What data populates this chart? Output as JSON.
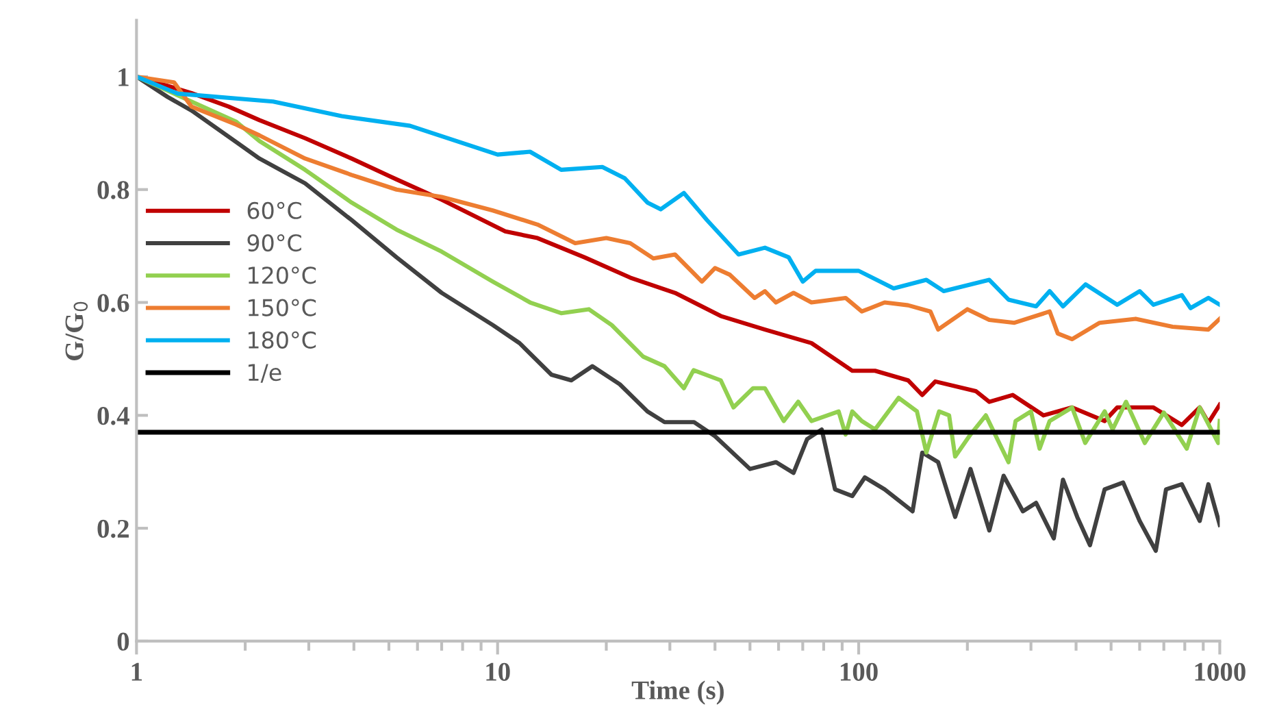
{
  "chart_data": {
    "type": "line",
    "xlabel": "Time (s)",
    "ylabel": "G/G$_{0}$",
    "log": "x",
    "xlim": [
      1,
      1000
    ],
    "ylim": [
      0,
      1.1
    ],
    "xticks": [
      1,
      10,
      100,
      1000
    ],
    "yticks": [
      0,
      0.2,
      0.4,
      0.6,
      0.8,
      1
    ],
    "grid": false,
    "legend": "left",
    "marker": "none",
    "line_style": "solid",
    "series": [
      {
        "name": "60°C",
        "color": "#c00000",
        "x": [
          1,
          1.42,
          1.8,
          2.19,
          2.93,
          3.94,
          5.25,
          7.0,
          10.5,
          12.9,
          17.4,
          23.3,
          31,
          41.5,
          55,
          74,
          96,
          111,
          137,
          150,
          163,
          211,
          230,
          267,
          325,
          390,
          480,
          520,
          655,
          785,
          880,
          930,
          1000
        ],
        "values": [
          1.0,
          0.971,
          0.947,
          0.923,
          0.891,
          0.855,
          0.818,
          0.782,
          0.726,
          0.714,
          0.68,
          0.644,
          0.617,
          0.576,
          0.552,
          0.528,
          0.479,
          0.479,
          0.462,
          0.436,
          0.46,
          0.443,
          0.424,
          0.436,
          0.4,
          0.414,
          0.39,
          0.414,
          0.414,
          0.383,
          0.414,
          0.387,
          0.419
        ]
      },
      {
        "name": "90°C",
        "color": "#404040",
        "x": [
          1,
          1.22,
          1.42,
          1.89,
          2.19,
          2.93,
          3.94,
          5.25,
          7.0,
          9.7,
          11.5,
          14.1,
          16,
          18.3,
          21.8,
          26,
          29,
          35,
          40,
          50,
          59,
          66,
          72,
          79,
          86,
          96,
          104,
          118,
          141,
          150,
          166,
          185,
          204,
          230,
          252,
          285,
          310,
          347,
          368,
          403,
          437,
          480,
          540,
          600,
          665,
          710,
          785,
          880,
          930,
          1000
        ],
        "values": [
          1.0,
          0.964,
          0.94,
          0.884,
          0.855,
          0.811,
          0.746,
          0.68,
          0.617,
          0.56,
          0.528,
          0.472,
          0.462,
          0.487,
          0.455,
          0.407,
          0.388,
          0.388,
          0.363,
          0.305,
          0.317,
          0.298,
          0.358,
          0.375,
          0.269,
          0.257,
          0.29,
          0.269,
          0.23,
          0.334,
          0.317,
          0.22,
          0.305,
          0.196,
          0.293,
          0.23,
          0.245,
          0.182,
          0.286,
          0.22,
          0.17,
          0.269,
          0.281,
          0.213,
          0.16,
          0.269,
          0.278,
          0.213,
          0.278,
          0.206
        ]
      },
      {
        "name": "120°C",
        "color": "#92d050",
        "x": [
          1,
          1.42,
          1.89,
          2.19,
          2.93,
          3.94,
          5.25,
          7.0,
          9.7,
          12.3,
          15,
          17.9,
          20.7,
          25.3,
          29,
          32.8,
          34.9,
          41.5,
          45,
          51,
          55,
          62,
          68,
          74,
          88,
          92,
          96,
          102,
          111,
          129,
          145,
          154,
          167,
          178,
          185,
          204,
          225,
          260,
          272,
          300,
          317,
          338,
          390,
          424,
          480,
          505,
          550,
          620,
          700,
          810,
          880,
          990,
          1000
        ],
        "values": [
          1.0,
          0.956,
          0.92,
          0.886,
          0.835,
          0.777,
          0.729,
          0.69,
          0.637,
          0.6,
          0.581,
          0.588,
          0.56,
          0.504,
          0.487,
          0.448,
          0.48,
          0.462,
          0.414,
          0.448,
          0.448,
          0.39,
          0.424,
          0.39,
          0.407,
          0.366,
          0.407,
          0.39,
          0.375,
          0.431,
          0.407,
          0.334,
          0.407,
          0.4,
          0.327,
          0.366,
          0.4,
          0.317,
          0.39,
          0.407,
          0.341,
          0.39,
          0.414,
          0.351,
          0.407,
          0.375,
          0.424,
          0.351,
          0.405,
          0.341,
          0.414,
          0.351,
          0.39
        ]
      },
      {
        "name": "150°C",
        "color": "#ed7d31",
        "x": [
          1,
          1.27,
          1.42,
          1.89,
          2.19,
          2.93,
          3.94,
          5.25,
          7.0,
          9.7,
          12.9,
          16.4,
          20,
          23.3,
          27,
          31,
          36.8,
          40,
          44,
          51.5,
          55,
          59,
          66,
          74,
          92,
          102,
          118,
          137,
          158,
          166,
          200,
          230,
          270,
          338,
          356,
          390,
          465,
          585,
          740,
          930,
          1000
        ],
        "values": [
          1.0,
          0.99,
          0.947,
          0.915,
          0.896,
          0.855,
          0.826,
          0.8,
          0.787,
          0.763,
          0.738,
          0.705,
          0.714,
          0.705,
          0.678,
          0.685,
          0.637,
          0.661,
          0.649,
          0.608,
          0.62,
          0.6,
          0.617,
          0.6,
          0.608,
          0.584,
          0.6,
          0.595,
          0.584,
          0.552,
          0.588,
          0.569,
          0.564,
          0.584,
          0.545,
          0.535,
          0.564,
          0.571,
          0.557,
          0.552,
          0.571
        ]
      },
      {
        "name": "180°C",
        "color": "#00b0f0",
        "x": [
          1,
          1.3,
          2.39,
          3.7,
          5.72,
          10,
          12.3,
          15,
          19.5,
          22.5,
          26,
          28.3,
          32.8,
          38,
          46.5,
          55,
          64,
          70,
          76,
          100,
          125,
          154,
          172,
          230,
          260,
          310,
          338,
          368,
          425,
          520,
          600,
          655,
          785,
          830,
          930,
          1000
        ],
        "values": [
          1.0,
          0.97,
          0.956,
          0.93,
          0.913,
          0.862,
          0.867,
          0.835,
          0.84,
          0.82,
          0.777,
          0.765,
          0.794,
          0.746,
          0.685,
          0.697,
          0.68,
          0.637,
          0.656,
          0.656,
          0.625,
          0.64,
          0.62,
          0.64,
          0.605,
          0.593,
          0.62,
          0.593,
          0.632,
          0.596,
          0.62,
          0.596,
          0.613,
          0.59,
          0.608,
          0.596
        ]
      }
    ],
    "ref_lines": [
      {
        "axis": "y",
        "value": 0.37,
        "label": "1/e",
        "color": "#000000"
      }
    ]
  }
}
